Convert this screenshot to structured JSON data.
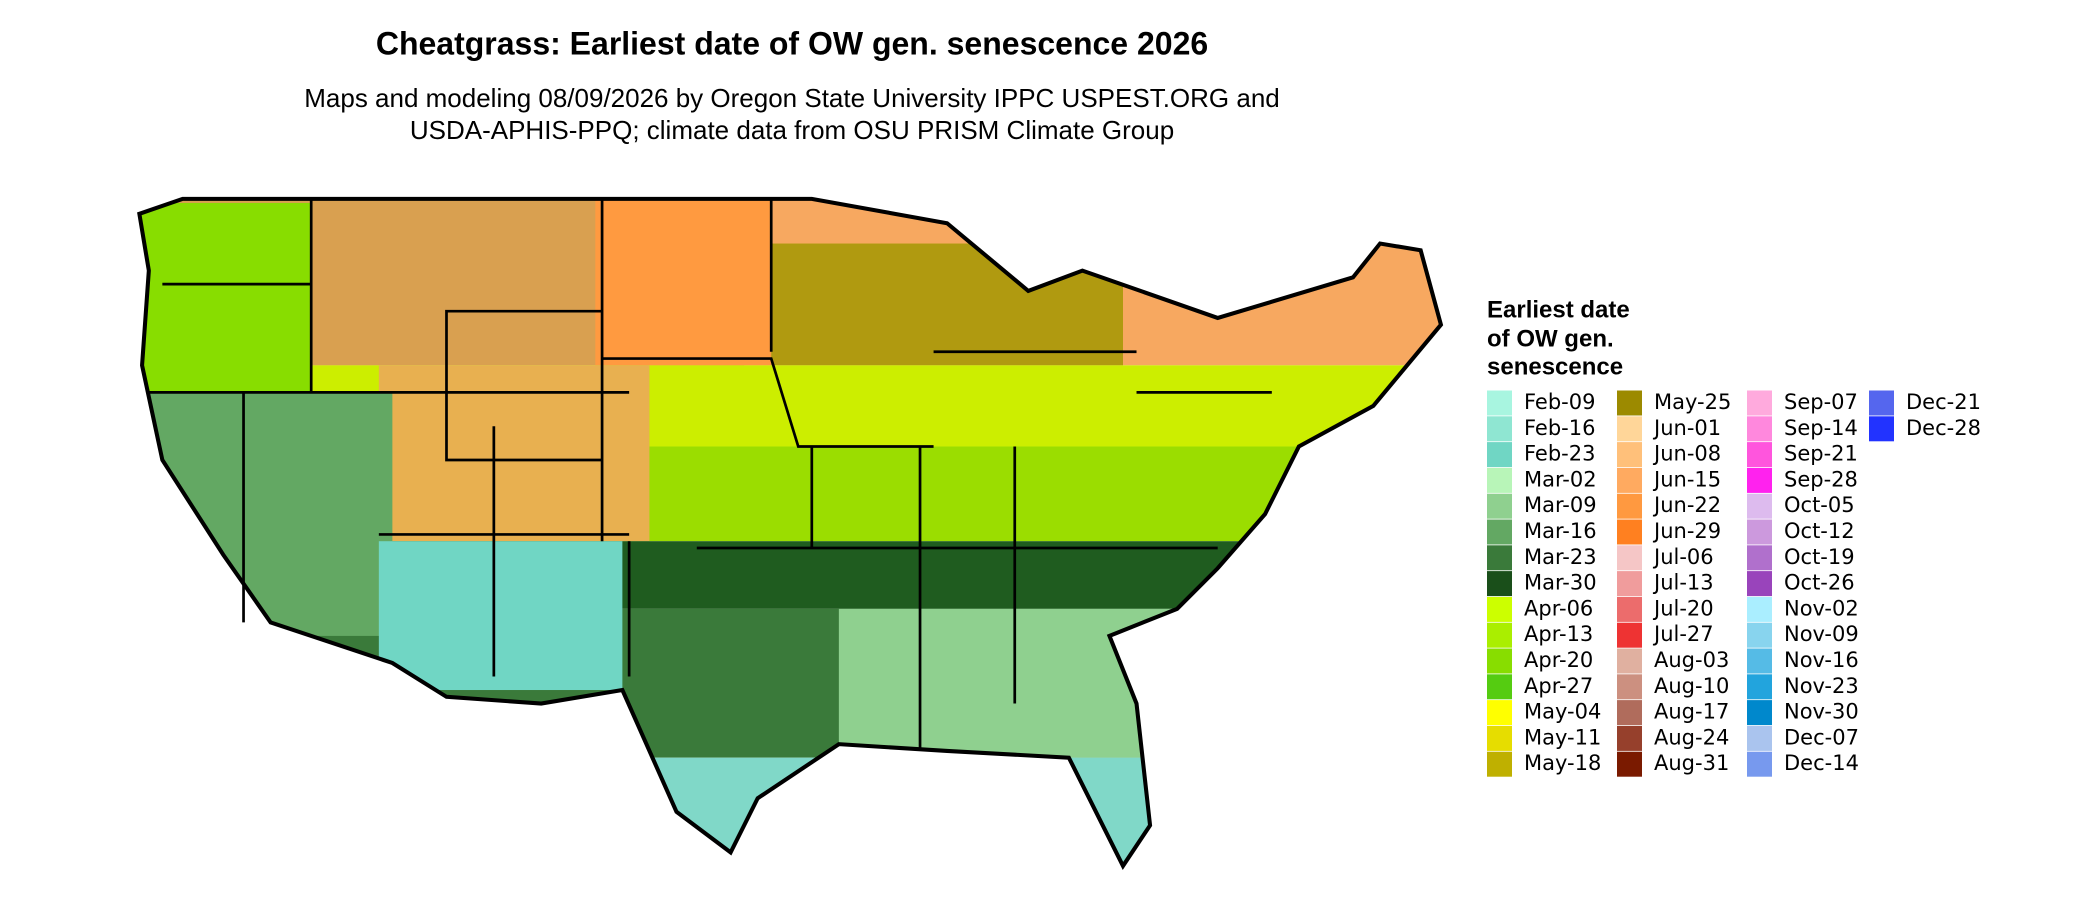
{
  "title": "Cheatgrass: Earliest date of OW gen. senescence 2026",
  "subtitle": [
    "Maps and modeling 08/09/2026 by Oregon State University IPPC USPEST.ORG and",
    "USDA-APHIS-PPQ; climate data from OSU PRISM Climate Group"
  ],
  "legend": {
    "title": [
      "Earliest date",
      "of OW gen.",
      "senescence"
    ],
    "items": [
      {
        "label": "Feb-09",
        "color": "#a8f5e0"
      },
      {
        "label": "Feb-16",
        "color": "#8fe6d2"
      },
      {
        "label": "Feb-23",
        "color": "#70d6c4"
      },
      {
        "label": "Mar-02",
        "color": "#b8f5b8"
      },
      {
        "label": "Mar-09",
        "color": "#8fd08f"
      },
      {
        "label": "Mar-16",
        "color": "#63a863"
      },
      {
        "label": "Mar-23",
        "color": "#3a7a3a"
      },
      {
        "label": "Mar-30",
        "color": "#1a4f1a"
      },
      {
        "label": "Apr-06",
        "color": "#ccff00"
      },
      {
        "label": "Apr-13",
        "color": "#aaee00"
      },
      {
        "label": "Apr-20",
        "color": "#88dd00"
      },
      {
        "label": "Apr-27",
        "color": "#55cc11"
      },
      {
        "label": "May-04",
        "color": "#ffff00"
      },
      {
        "label": "May-11",
        "color": "#e6dd00"
      },
      {
        "label": "May-18",
        "color": "#bfb000"
      },
      {
        "label": "May-25",
        "color": "#9c8a00"
      },
      {
        "label": "Jun-01",
        "color": "#ffd699"
      },
      {
        "label": "Jun-08",
        "color": "#ffc07a"
      },
      {
        "label": "Jun-15",
        "color": "#ffaa60"
      },
      {
        "label": "Jun-22",
        "color": "#ff9940"
      },
      {
        "label": "Jun-29",
        "color": "#ff8020"
      },
      {
        "label": "Jul-06",
        "color": "#f5c6c6"
      },
      {
        "label": "Jul-13",
        "color": "#f09c9c"
      },
      {
        "label": "Jul-20",
        "color": "#ec6c6c"
      },
      {
        "label": "Jul-27",
        "color": "#ee3333"
      },
      {
        "label": "Aug-03",
        "color": "#e0b0a0"
      },
      {
        "label": "Aug-10",
        "color": "#cc9080"
      },
      {
        "label": "Aug-17",
        "color": "#b06c5c"
      },
      {
        "label": "Aug-24",
        "color": "#96402c"
      },
      {
        "label": "Aug-31",
        "color": "#7a1a00"
      },
      {
        "label": "Sep-07",
        "color": "#ffaadd"
      },
      {
        "label": "Sep-14",
        "color": "#ff88dd"
      },
      {
        "label": "Sep-21",
        "color": "#ff55dd"
      },
      {
        "label": "Sep-28",
        "color": "#ff22ee"
      },
      {
        "label": "Oct-05",
        "color": "#ddbbee"
      },
      {
        "label": "Oct-12",
        "color": "#cc99dd"
      },
      {
        "label": "Oct-19",
        "color": "#b070cc"
      },
      {
        "label": "Oct-26",
        "color": "#9944bb"
      },
      {
        "label": "Nov-02",
        "color": "#aaeeff"
      },
      {
        "label": "Nov-09",
        "color": "#88d4ee"
      },
      {
        "label": "Nov-16",
        "color": "#55bbe6"
      },
      {
        "label": "Nov-23",
        "color": "#22a4dd"
      },
      {
        "label": "Nov-30",
        "color": "#0088cc"
      },
      {
        "label": "Dec-07",
        "color": "#aac4ee"
      },
      {
        "label": "Dec-14",
        "color": "#7799ee"
      },
      {
        "label": "Dec-21",
        "color": "#5566ee"
      },
      {
        "label": "Dec-28",
        "color": "#2233ff"
      }
    ]
  }
}
